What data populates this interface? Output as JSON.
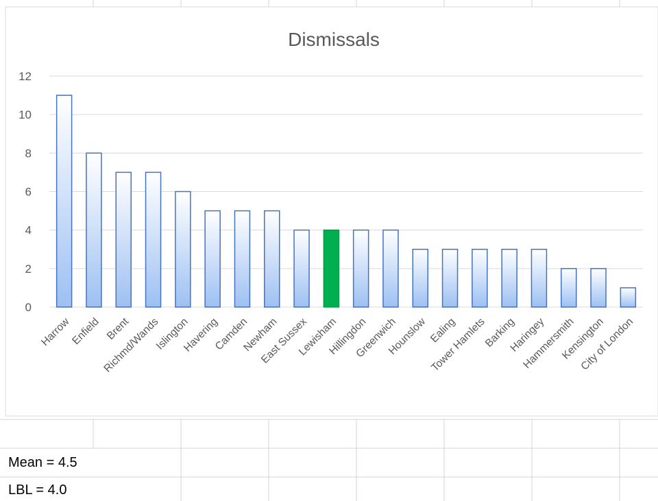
{
  "chart_data": {
    "type": "bar",
    "title": "Dismissals",
    "xlabel": "",
    "ylabel": "",
    "categories": [
      "Harrow",
      "Enfield",
      "Brent",
      "Richmd/Wands",
      "Islington",
      "Havering",
      "Camden",
      "Newham",
      "East Sussex",
      "Lewisham",
      "Hillingdon",
      "Greenwich",
      "Hounslow",
      "Ealing",
      "Tower Hamlets",
      "Barking",
      "Haringey",
      "Hammersmith",
      "Kensington",
      "City of London"
    ],
    "values": [
      11,
      8,
      7,
      7,
      6,
      5,
      5,
      5,
      4,
      4,
      4,
      4,
      3,
      3,
      3,
      3,
      3,
      2,
      2,
      1
    ],
    "highlight_category": "Lewisham",
    "ylim": [
      0,
      12
    ],
    "yticks": [
      0,
      2,
      4,
      6,
      8,
      10,
      12
    ],
    "grid": true,
    "legend": "none",
    "colors": {
      "bar_gradient_top": "#ffffff",
      "bar_gradient_bottom": "#9dc0f2",
      "bar_border": "#4472c4",
      "highlight_fill": "#00b050",
      "highlight_border": "#00a04a",
      "gridline": "#d9d9d9",
      "title": "#595959",
      "tick_label": "#595959"
    }
  },
  "cells": {
    "mean": "Mean = 4.5",
    "lbl": "LBL = 4.0"
  }
}
